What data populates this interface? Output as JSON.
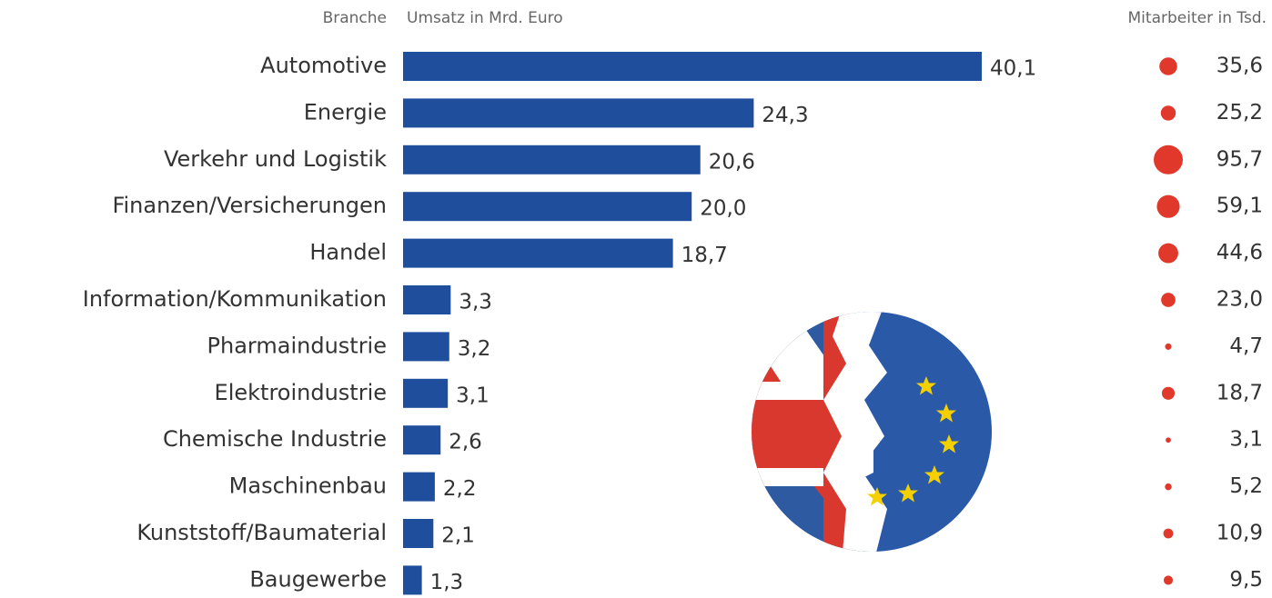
{
  "chart_data": {
    "type": "bar",
    "orientation": "horizontal",
    "category_label": "Branche",
    "categories": [
      "Automotive",
      "Energie",
      "Verkehr und Logistik",
      "Finanzen/Versicherungen",
      "Handel",
      "Information/Kommunikation",
      "Pharmaindustrie",
      "Elektroindustrie",
      "Chemische Industrie",
      "Maschinenbau",
      "Kunststoff/Baumaterial",
      "Baugewerbe"
    ],
    "series": [
      {
        "name": "Umsatz in Mrd. Euro",
        "type": "bar",
        "color": "#1f4e9c",
        "values": [
          40.1,
          24.3,
          20.6,
          20.0,
          18.7,
          3.3,
          3.2,
          3.1,
          2.6,
          2.2,
          2.1,
          1.3
        ],
        "value_labels": [
          "40,1",
          "24,3",
          "20,6",
          "20,0",
          "18,7",
          "3,3",
          "3,2",
          "3,1",
          "2,6",
          "2,2",
          "2,1",
          "1,3"
        ]
      },
      {
        "name": "Mitarbeiter in Tsd.",
        "type": "bubble",
        "color": "#e0392b",
        "values": [
          35.6,
          25.2,
          95.7,
          59.1,
          44.6,
          23.0,
          4.7,
          18.7,
          3.1,
          5.2,
          10.9,
          9.5
        ],
        "value_labels": [
          "35,6",
          "25,2",
          "95,7",
          "59,1",
          "44,6",
          "23,0",
          "4,7",
          "18,7",
          "3,1",
          "5,2",
          "10,9",
          "9,5"
        ]
      }
    ]
  }
}
